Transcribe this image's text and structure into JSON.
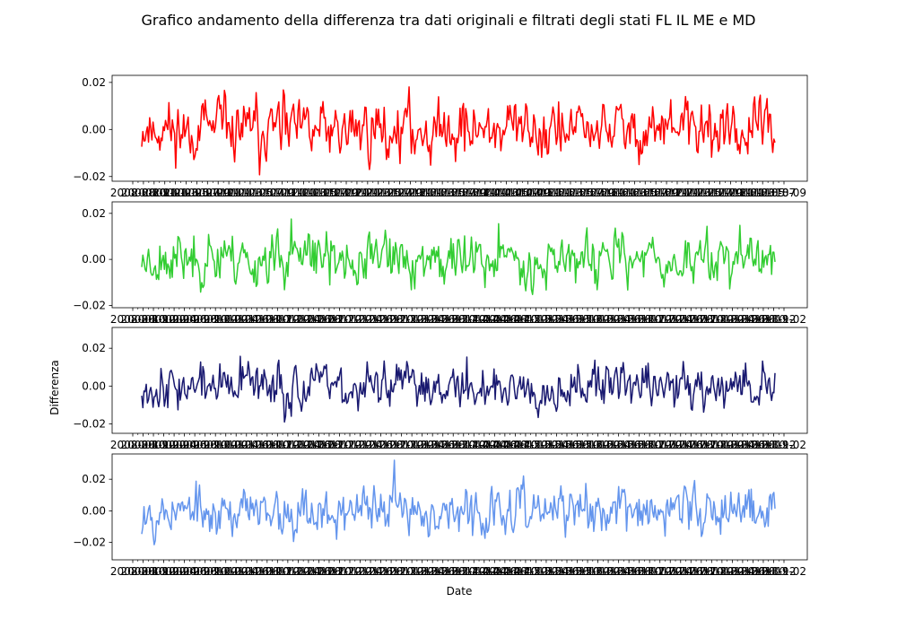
{
  "figure": {
    "title": "Grafico andamento della differenza tra dati originali e filtrati degli stati FL IL ME e MD",
    "xlabel": "Date",
    "ylabel": "Differenza"
  },
  "chart_data": [
    {
      "type": "line",
      "series": [
        {
          "color": "#ff0000"
        }
      ],
      "ylim": [
        -0.022,
        0.023
      ],
      "yticks": [
        0.02,
        0.0,
        -0.02
      ],
      "ytick_labels": [
        "0.02",
        "0.00",
        "−0.02"
      ],
      "xtick_labels": [
        "2008-08",
        "2008-10",
        "2008-11",
        "2009-01",
        "2009-03",
        "2009-05",
        "2009-07",
        "2009-09",
        "2009-11",
        "2010-01",
        "2010-03",
        "2010-05",
        "2010-07",
        "2010-09",
        "2010-11",
        "2011-01",
        "2011-03",
        "2011-05",
        "2011-07",
        "2011-09",
        "2011-11",
        "2012-01",
        "2012-03",
        "2012-05",
        "2012-07",
        "2012-09",
        "2012-11",
        "2013-01",
        "2013-03",
        "2013-05",
        "2013-07",
        "2013-09",
        "2013-11",
        "2014-01",
        "2014-03",
        "2014-05",
        "2014-07",
        "2014-09",
        "2014-11",
        "2015-01",
        "2015-03",
        "2015-05",
        "2015-07",
        "2015-09",
        "2015-11",
        "2016-01",
        "2016-03",
        "2016-05",
        "2016-07",
        "2016-09",
        "2016-11",
        "2017-01",
        "2017-03",
        "2017-05",
        "2017-07",
        "2017-09",
        "2017-11",
        "2018-01",
        "2018-03",
        "2018-05",
        "2018-07",
        "2018-09"
      ],
      "x_range": [
        "2008-08",
        "2018-09"
      ],
      "noise": {
        "seed": 11,
        "amplitude": 0.0058,
        "min": -0.02,
        "max": 0.021
      }
    },
    {
      "type": "line",
      "series": [
        {
          "color": "#32cd32"
        }
      ],
      "ylim": [
        -0.021,
        0.025
      ],
      "yticks": [
        0.02,
        0.0,
        -0.02
      ],
      "ytick_labels": [
        "0.02",
        "0.00",
        "−0.02"
      ],
      "xtick_labels": [
        "2008-08",
        "2008-10",
        "2008-12",
        "2009-02",
        "2009-04",
        "2009-06",
        "2009-08",
        "2009-10",
        "2009-12",
        "2010-02",
        "2010-04",
        "2010-06",
        "2010-08",
        "2010-10",
        "2010-12",
        "2011-02",
        "2011-04",
        "2011-06",
        "2011-08",
        "2011-10",
        "2011-12",
        "2012-02",
        "2012-04",
        "2012-06",
        "2012-08",
        "2012-10",
        "2012-12",
        "2013-02",
        "2013-04",
        "2013-06",
        "2013-08",
        "2013-10",
        "2013-12",
        "2014-02",
        "2014-04",
        "2014-06",
        "2014-08",
        "2014-10",
        "2014-12",
        "2015-02",
        "2015-04",
        "2015-06",
        "2015-08",
        "2015-10",
        "2015-12",
        "2016-02",
        "2016-04",
        "2016-06",
        "2016-08",
        "2016-10",
        "2016-12",
        "2017-02",
        "2017-04",
        "2017-06",
        "2017-08",
        "2017-10",
        "2017-12",
        "2018-02",
        "2018-04",
        "2018-06",
        "2018-08",
        "2018-10",
        "2018-12",
        "2019-02"
      ],
      "x_range": [
        "2008-08",
        "2019-02"
      ],
      "noise": {
        "seed": 23,
        "amplitude": 0.0052,
        "min": -0.019,
        "max": 0.023
      }
    },
    {
      "type": "line",
      "series": [
        {
          "color": "#191970"
        }
      ],
      "ylim": [
        -0.025,
        0.031
      ],
      "yticks": [
        0.02,
        0.0,
        -0.02
      ],
      "ytick_labels": [
        "0.02",
        "0.00",
        "−0.02"
      ],
      "xtick_labels": [
        "2008-08",
        "2008-10",
        "2008-12",
        "2009-02",
        "2009-04",
        "2009-06",
        "2009-08",
        "2009-10",
        "2009-12",
        "2010-02",
        "2010-04",
        "2010-06",
        "2010-08",
        "2010-10",
        "2010-12",
        "2011-02",
        "2011-04",
        "2011-06",
        "2011-08",
        "2011-10",
        "2011-12",
        "2012-02",
        "2012-04",
        "2012-06",
        "2012-08",
        "2012-10",
        "2012-12",
        "2013-02",
        "2013-04",
        "2013-06",
        "2013-08",
        "2013-10",
        "2013-12",
        "2014-02",
        "2014-04",
        "2014-06",
        "2014-08",
        "2014-10",
        "2014-12",
        "2015-02",
        "2015-04",
        "2015-06",
        "2015-08",
        "2015-10",
        "2015-12",
        "2016-02",
        "2016-04",
        "2016-06",
        "2016-08",
        "2016-10",
        "2016-12",
        "2017-02",
        "2017-04",
        "2017-06",
        "2017-08",
        "2017-10",
        "2017-12",
        "2018-02",
        "2018-04",
        "2018-06",
        "2018-08",
        "2018-10",
        "2018-12",
        "2019-02"
      ],
      "x_range": [
        "2008-08",
        "2019-02"
      ],
      "noise": {
        "seed": 37,
        "amplitude": 0.0055,
        "min": -0.022,
        "max": 0.029
      }
    },
    {
      "type": "line",
      "series": [
        {
          "color": "#6495ed"
        }
      ],
      "ylim": [
        -0.031,
        0.036
      ],
      "yticks": [
        0.02,
        0.0,
        -0.02
      ],
      "ytick_labels": [
        "0.02",
        "0.00",
        "−0.02"
      ],
      "xtick_labels": [
        "2008-08",
        "2008-10",
        "2008-12",
        "2009-02",
        "2009-04",
        "2009-06",
        "2009-08",
        "2009-10",
        "2009-12",
        "2010-02",
        "2010-04",
        "2010-06",
        "2010-08",
        "2010-10",
        "2010-12",
        "2011-02",
        "2011-04",
        "2011-06",
        "2011-08",
        "2011-10",
        "2011-12",
        "2012-02",
        "2012-04",
        "2012-06",
        "2012-08",
        "2012-10",
        "2012-12",
        "2013-02",
        "2013-04",
        "2013-06",
        "2013-08",
        "2013-10",
        "2013-12",
        "2014-02",
        "2014-04",
        "2014-06",
        "2014-08",
        "2014-10",
        "2014-12",
        "2015-02",
        "2015-04",
        "2015-06",
        "2015-08",
        "2015-10",
        "2015-12",
        "2016-02",
        "2016-04",
        "2016-06",
        "2016-08",
        "2016-10",
        "2016-12",
        "2017-02",
        "2017-04",
        "2017-06",
        "2017-08",
        "2017-10",
        "2017-12",
        "2018-02",
        "2018-04",
        "2018-06",
        "2018-08",
        "2018-10",
        "2018-12",
        "2019-02"
      ],
      "x_range": [
        "2008-08",
        "2019-02"
      ],
      "noise": {
        "seed": 53,
        "amplitude": 0.007,
        "min": -0.027,
        "max": 0.032
      }
    }
  ]
}
